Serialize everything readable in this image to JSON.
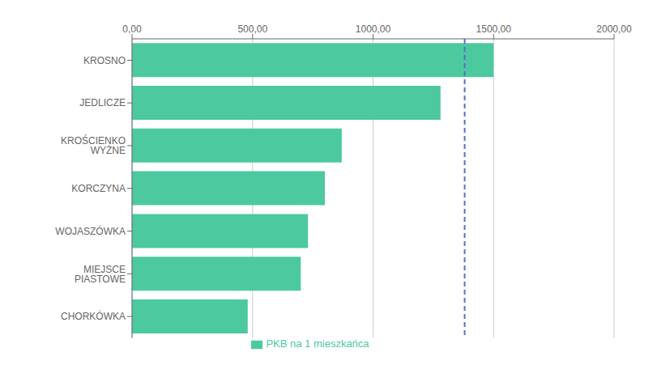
{
  "chart_data": {
    "type": "bar",
    "orientation": "horizontal",
    "categories": [
      "CHORKÓWKA",
      "MIEJSCE PIASTOWE",
      "WOJASZÓWKA",
      "KORCZYNA",
      "KROŚCIENKO WYŻNE",
      "JEDLICZE",
      "KROSNO"
    ],
    "series": [
      {
        "name": "PKB na 1 mieszkańca",
        "color": "#4DC9A0",
        "values": [
          480,
          700,
          730,
          800,
          870,
          1280,
          1500
        ]
      }
    ],
    "reference_lines": [
      {
        "x": 1380,
        "color": "#5B6DC8",
        "line_style": "dashed"
      }
    ],
    "xlim": [
      0,
      2000
    ],
    "xticks": [
      {
        "value": 0,
        "label": "0,00"
      },
      {
        "value": 500,
        "label": "500,00"
      },
      {
        "value": 1000,
        "label": "1000,00"
      },
      {
        "value": 1500,
        "label": "1500,00"
      },
      {
        "value": 2000,
        "label": "2000,00"
      }
    ],
    "grid": true,
    "legend": "bottom"
  }
}
